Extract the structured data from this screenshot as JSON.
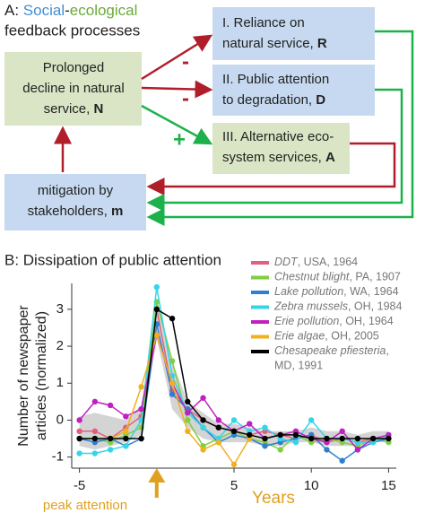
{
  "panel_a": {
    "title": {
      "prefix": "A:",
      "social": "Social",
      "hyphen": "-",
      "ecological": "ecological",
      "line2": "feedback processes"
    },
    "nodes": {
      "N": {
        "lines": [
          "Prolonged",
          "decline in natural",
          "service,"
        ],
        "symbol": "N"
      },
      "R": {
        "lines": [
          "I. Reliance on",
          "natural service,"
        ],
        "symbol": "R"
      },
      "D": {
        "lines": [
          "II. Public attention",
          "to degradation,"
        ],
        "symbol": "D"
      },
      "A": {
        "lines": [
          "III. Alternative eco-",
          "system services,"
        ],
        "symbol": "A"
      },
      "m": {
        "lines": [
          "mitigation by",
          "stakeholders,"
        ],
        "symbol": "m"
      }
    },
    "signs": [
      "-",
      "-",
      "+"
    ]
  },
  "chart_data": {
    "type": "line",
    "title": "B: Dissipation of public attention",
    "y_label": [
      "Number of newspaper",
      "articles (normalized)"
    ],
    "x_label": "Years",
    "annotation": "peak attention",
    "x": [
      -5,
      -4,
      -3,
      -2,
      -1,
      0,
      1,
      2,
      3,
      4,
      5,
      6,
      7,
      8,
      9,
      10,
      11,
      12,
      13,
      14,
      15
    ],
    "xlim": [
      -5.5,
      15.5
    ],
    "xticks": [
      -5,
      5,
      10,
      15
    ],
    "ylim": [
      -1.3,
      3.7
    ],
    "yticks": [
      -1,
      0,
      1,
      2,
      3
    ],
    "ribbon": {
      "color": "#c9c9c9",
      "lower": [
        -0.7,
        -0.8,
        -0.7,
        -0.6,
        -0.4,
        2.2,
        0.3,
        -0.2,
        -0.5,
        -0.6,
        -0.6,
        -0.6,
        -0.7,
        -0.7,
        -0.6,
        -0.6,
        -0.7,
        -0.7,
        -0.7,
        -0.6,
        -0.6
      ],
      "upper": [
        0.1,
        0.2,
        0.1,
        0.0,
        0.4,
        3.3,
        1.6,
        0.5,
        0.2,
        -0.1,
        -0.1,
        -0.2,
        -0.3,
        -0.3,
        -0.3,
        -0.2,
        -0.3,
        -0.3,
        -0.4,
        -0.3,
        -0.3
      ]
    },
    "series": [
      {
        "name": "DDT",
        "detail": ", USA, 1964",
        "color": "#e0607e",
        "values": [
          -0.3,
          -0.3,
          -0.5,
          -0.2,
          0.1,
          3.0,
          0.8,
          0.3,
          0.0,
          -0.2,
          -0.3,
          -0.4,
          -0.3,
          -0.4,
          -0.5,
          -0.4,
          -0.6,
          -0.5,
          -0.6,
          -0.5,
          -0.5
        ]
      },
      {
        "name": "Chestnut blight",
        "detail": ", PA, 1907",
        "color": "#7fcf3f",
        "values": [
          -0.5,
          -0.5,
          -0.6,
          -0.4,
          -0.2,
          3.2,
          1.6,
          0.0,
          -0.7,
          -0.5,
          -0.3,
          -0.5,
          -0.6,
          -0.8,
          -0.4,
          -0.6,
          -0.5,
          -0.6,
          -0.7,
          -0.5,
          -0.6
        ]
      },
      {
        "name": "Lake pollution",
        "detail": ", WA, 1964",
        "color": "#2f7fd0",
        "values": [
          -0.5,
          -0.6,
          -0.5,
          -0.7,
          -0.5,
          2.6,
          0.7,
          0.3,
          -0.2,
          -0.6,
          -0.4,
          -0.5,
          -0.7,
          -0.6,
          -0.5,
          -0.4,
          -0.8,
          -1.1,
          -0.8,
          -0.6,
          -0.5
        ]
      },
      {
        "name": "Zebra mussels",
        "detail": ", OH, 1984",
        "color": "#35d5e8",
        "values": [
          -0.9,
          -0.9,
          -0.8,
          -0.7,
          0.0,
          3.6,
          1.2,
          0.2,
          -0.2,
          -0.5,
          0.0,
          -0.3,
          -0.2,
          -0.5,
          -0.6,
          0.0,
          -0.5,
          -0.5,
          -0.6,
          -0.6,
          -0.4
        ]
      },
      {
        "name": "Erie pollution",
        "detail": ", OH, 1964",
        "color": "#c020c0",
        "values": [
          0.0,
          0.5,
          0.4,
          0.1,
          0.3,
          2.3,
          1.0,
          0.2,
          0.6,
          0.0,
          -0.3,
          -0.1,
          -0.5,
          -0.4,
          -0.3,
          -0.5,
          -0.6,
          -0.3,
          -0.8,
          -0.5,
          -0.4
        ]
      },
      {
        "name": "Erie algae",
        "detail": ", OH, 2005",
        "color": "#f0b020",
        "values": [
          null,
          null,
          -0.5,
          -0.3,
          0.9,
          2.3,
          1.0,
          -0.3,
          -0.8,
          -0.6,
          -1.2,
          -0.5,
          null,
          null,
          null,
          null,
          null,
          null,
          null,
          null,
          null
        ]
      },
      {
        "name": "Chesapeake pfiesteria",
        "detail": ",",
        "detail2": "MD, 1991",
        "color": "#000000",
        "values": [
          -0.5,
          -0.5,
          -0.5,
          -0.5,
          -0.5,
          3.0,
          2.75,
          0.5,
          0.0,
          -0.2,
          -0.3,
          -0.4,
          -0.5,
          -0.4,
          -0.4,
          -0.5,
          -0.5,
          -0.5,
          -0.5,
          -0.5,
          -0.5
        ]
      }
    ],
    "accent_color": "#e0a020"
  }
}
